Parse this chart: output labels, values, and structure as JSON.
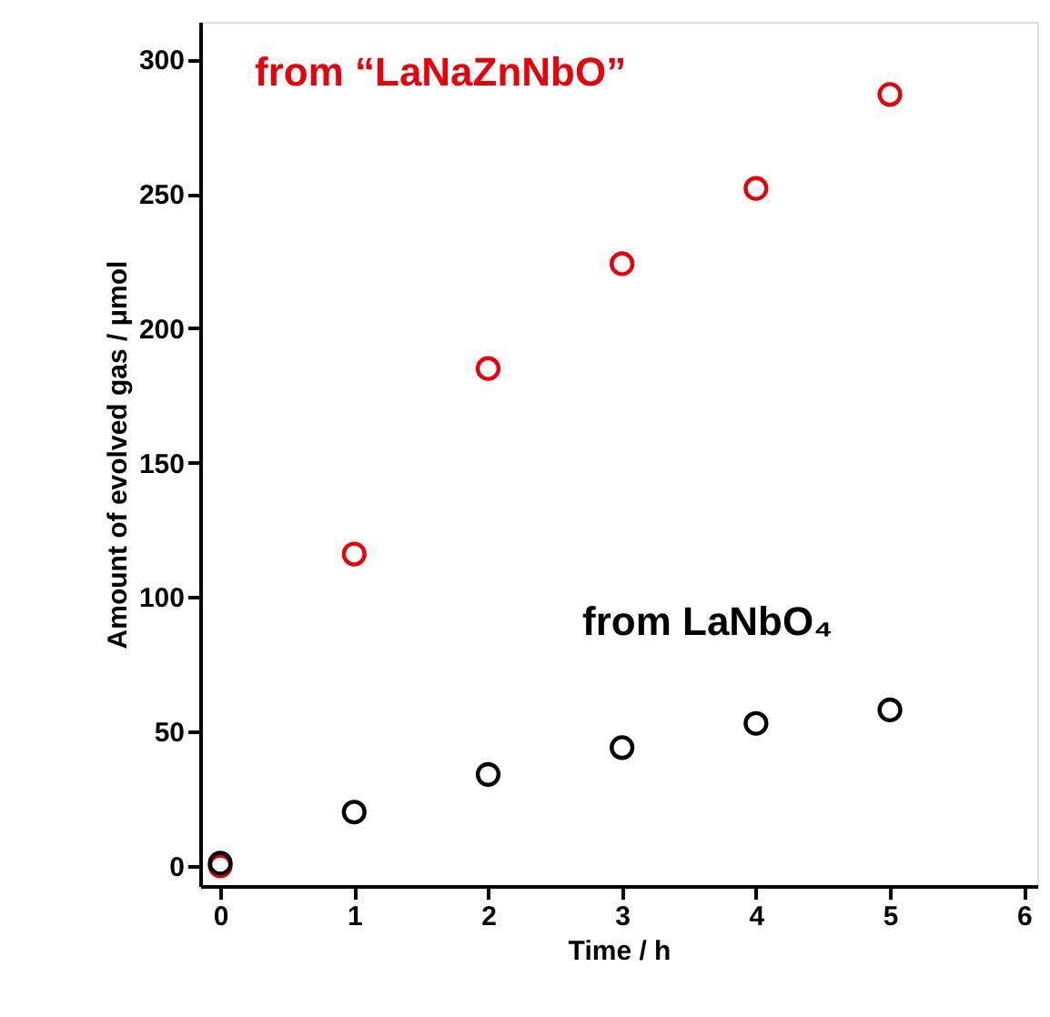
{
  "chart_data": {
    "type": "scatter",
    "xlabel": "Time / h",
    "ylabel": "Amount of evolved gas / μmol",
    "x": [
      0,
      1,
      2,
      3,
      4,
      5
    ],
    "series": [
      {
        "name": "from “LaNaZnNbO”",
        "color": "#e8000b",
        "values": [
          0,
          116,
          185,
          224,
          252,
          287
        ]
      },
      {
        "name": "from LaNbO₄",
        "color": "#000000",
        "values": [
          1,
          20,
          34,
          44,
          53,
          58
        ]
      }
    ],
    "xlim": [
      -0.15,
      6.1
    ],
    "xticks": [
      0,
      1,
      2,
      3,
      4,
      5,
      6
    ],
    "ylim": [
      -7.5,
      314
    ],
    "yticks": [
      0,
      50,
      100,
      150,
      200,
      250,
      300
    ],
    "marker": "circle"
  }
}
